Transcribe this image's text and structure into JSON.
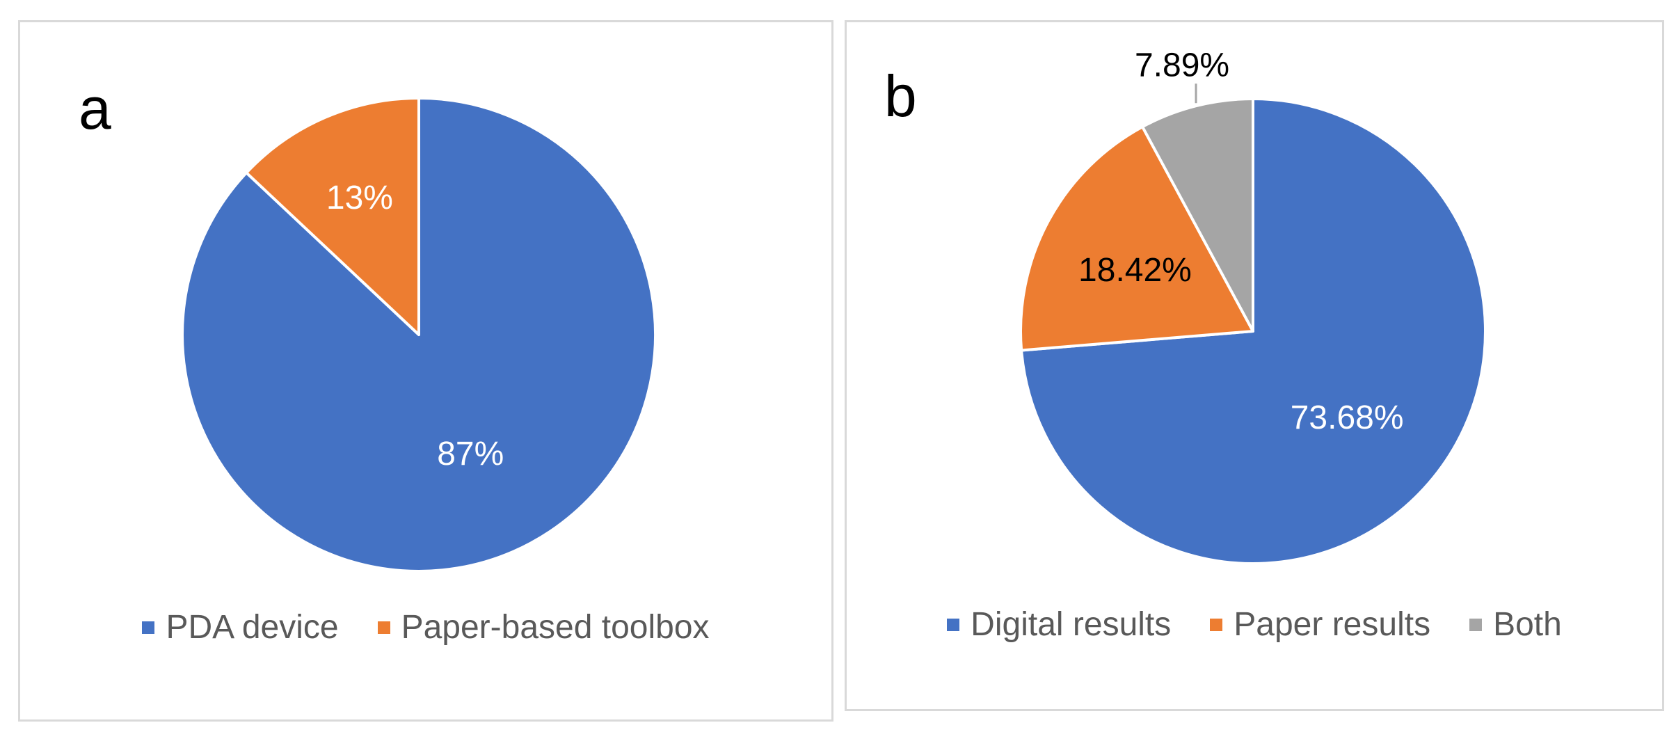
{
  "chart_data": [
    {
      "type": "pie",
      "panel_label": "a",
      "title": "",
      "series": [
        {
          "name": "PDA device",
          "value": 87,
          "label": "87%",
          "color": "#4472C4",
          "label_color": "#ffffff"
        },
        {
          "name": "Paper-based toolbox",
          "value": 13,
          "label": "13%",
          "color": "#ED7D31",
          "label_color": "#ffffff"
        }
      ],
      "legend_placement": "bottom"
    },
    {
      "type": "pie",
      "panel_label": "b",
      "title": "",
      "series": [
        {
          "name": "Digital results",
          "value": 73.68,
          "label": "73.68%",
          "color": "#4472C4",
          "label_color": "#ffffff"
        },
        {
          "name": "Paper results",
          "value": 18.42,
          "label": "18.42%",
          "color": "#ED7D31",
          "label_color": "#000000"
        },
        {
          "name": "Both",
          "value": 7.89,
          "label": "7.89%",
          "color": "#A5A5A5",
          "label_color": "#000000"
        }
      ],
      "legend_placement": "bottom"
    }
  ]
}
